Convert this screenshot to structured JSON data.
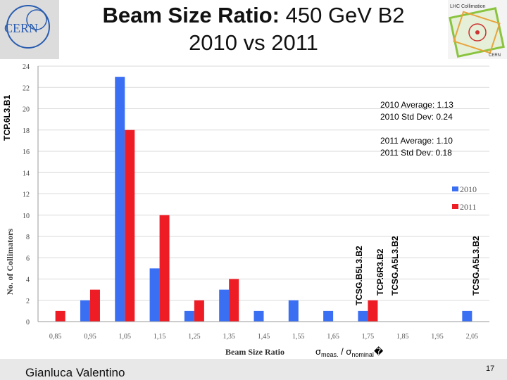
{
  "header": {
    "title_bold": "Beam Size Ratio:",
    "title_rest": " 450 GeV B2",
    "title_line2": "2010 vs 2011",
    "left_logo_text": "CERN",
    "right_logo_text": "LHC Collimation",
    "right_logo_sub": "CERN"
  },
  "footer": {
    "presenter": "Gianluca Valentino",
    "page": "17"
  },
  "colors": {
    "series_2010": "#3b6ff3",
    "series_2011": "#ee1c24",
    "grid": "#d9d9d9"
  },
  "chart_data": {
    "type": "bar",
    "categories": [
      "0,85",
      "0,95",
      "1,05",
      "1,15",
      "1,25",
      "1,35",
      "1,45",
      "1,55",
      "1,65",
      "1,75",
      "1,85",
      "1,95",
      "2,05"
    ],
    "series": [
      {
        "name": "2010",
        "values": [
          0,
          2,
          23,
          5,
          1,
          3,
          1,
          2,
          1,
          1,
          0,
          0,
          1
        ]
      },
      {
        "name": "2011",
        "values": [
          1,
          3,
          18,
          10,
          2,
          4,
          0,
          0,
          0,
          2,
          0,
          0,
          0
        ]
      }
    ],
    "ylim": [
      0,
      24
    ],
    "yticks": [
      0,
      2,
      4,
      6,
      8,
      10,
      12,
      14,
      16,
      18,
      20,
      22,
      24
    ],
    "ylabel": "No. of Collimators",
    "xlabel": "Beam Size Ratio",
    "xlabel_sigma_meas": "σ",
    "xlabel_meas_sub": "meas.",
    "xlabel_slash": " / σ",
    "xlabel_nom_sub": "nominal",
    "xlabel_end": "�",
    "grid": true,
    "legend_position": "right",
    "annotations": {
      "stats_2010_avg": "2010 Average: 1.13",
      "stats_2010_std": "2010 Std Dev:  0.24",
      "stats_2011_avg": "2011 Average:  1.10",
      "stats_2011_std": "2011 Std Dev:   0.18",
      "outlier_tcp": "TCP.6L3.B1",
      "outlier_tcsg_b5": "TCSG.B5L3.B2",
      "outlier_tcp6r3": "TCP.6R3.B2",
      "outlier_tcsg_a5_175": "TCSG.A5L3.B2",
      "outlier_tcsg_a5_205": "TCSG.A5L3.B2"
    }
  }
}
